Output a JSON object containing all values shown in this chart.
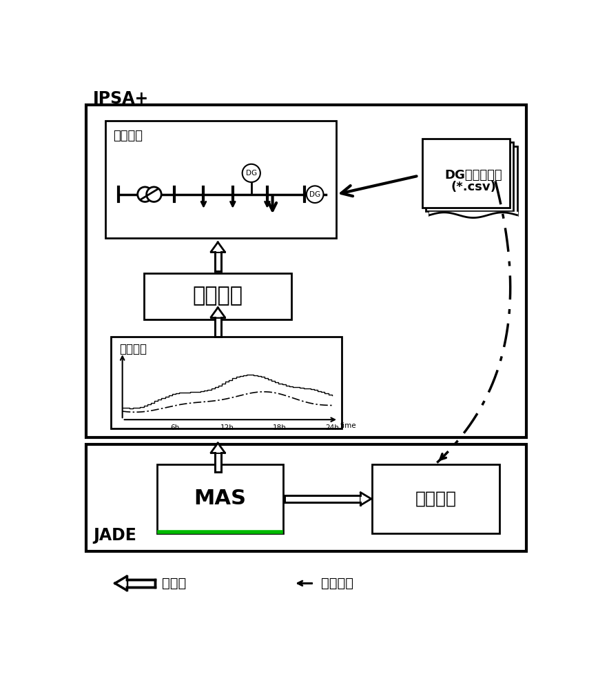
{
  "title_ipsa": "IPSA+",
  "title_jade": "JADE",
  "label_network": "网络模型",
  "label_powerflow": "潮流计算",
  "label_voltage": "电压监测",
  "label_dg_line1": "DG及负荷数据",
  "label_dg_line2": "(*.csv)",
  "label_mas": "MAS",
  "label_control": "控制策略",
  "label_dg_circle": "DG",
  "legend_data_flow": "数据流",
  "legend_control_signal": "控制信号",
  "axis_labels": [
    "6h",
    "12h",
    "18h",
    "24h",
    "time"
  ],
  "bg_color": "#ffffff",
  "green_color": "#00bb00"
}
